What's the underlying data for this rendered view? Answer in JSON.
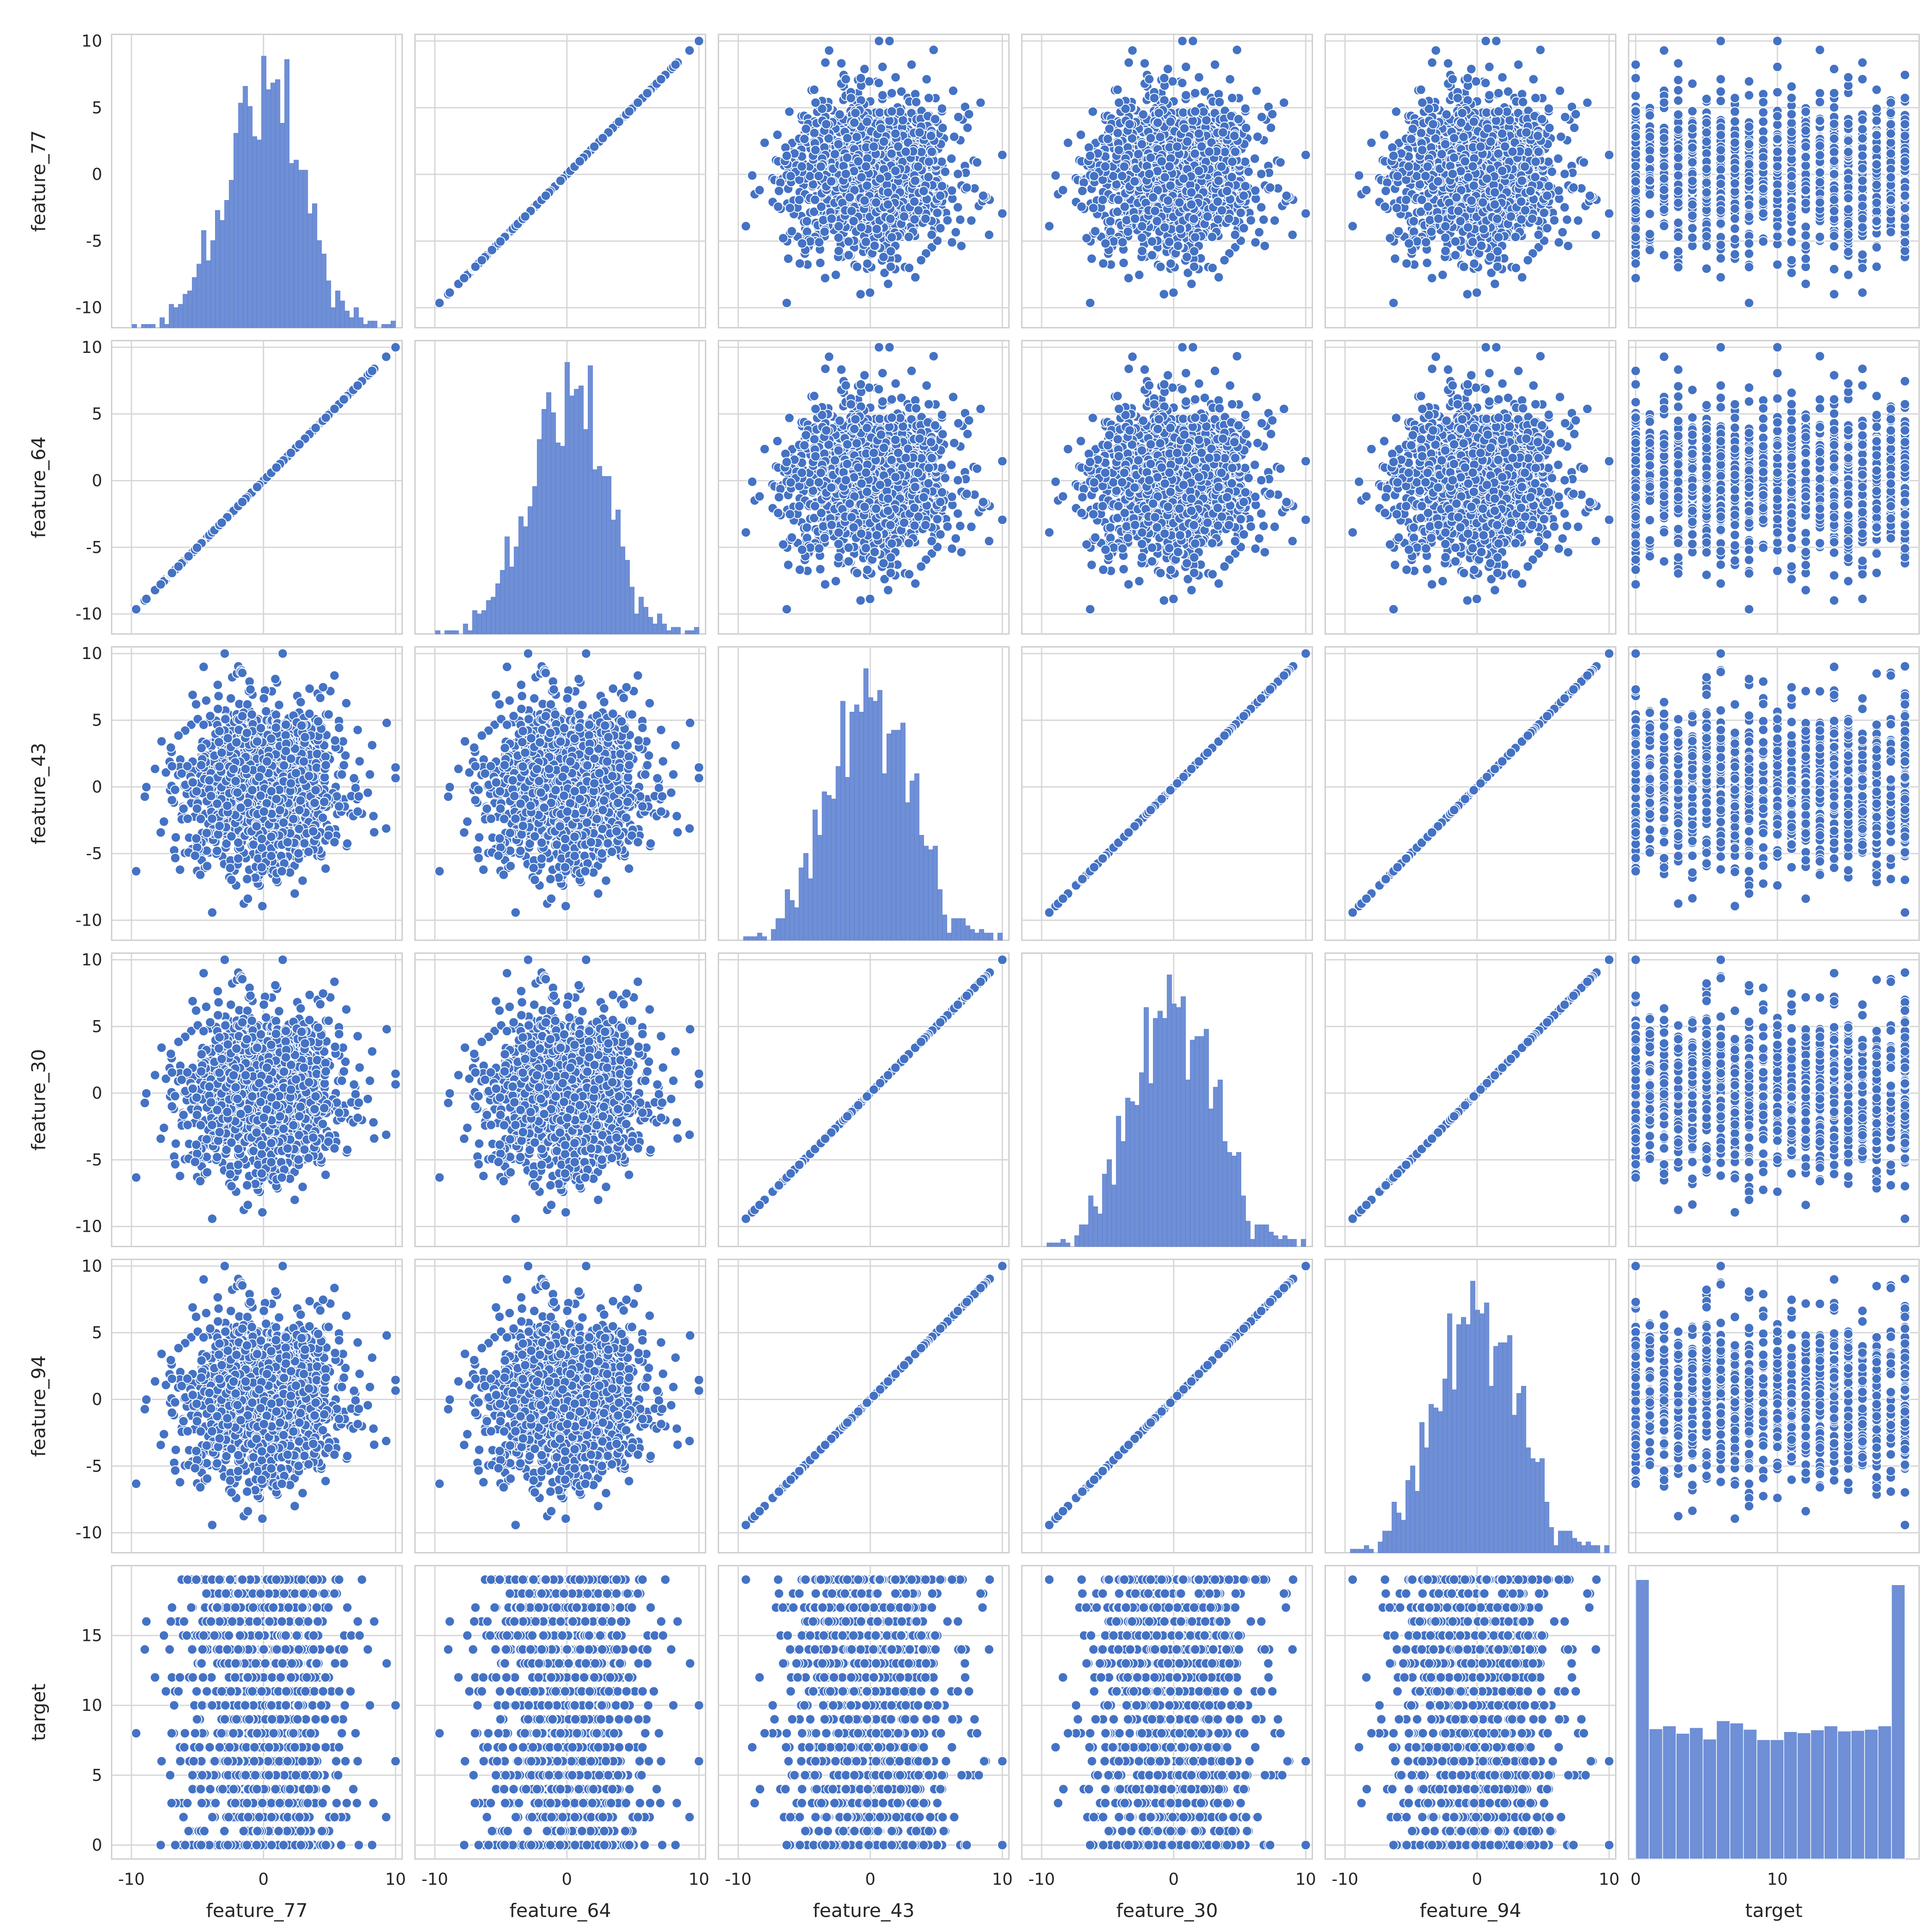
{
  "chart_data": {
    "type": "pairplot",
    "variables": [
      "feature_77",
      "feature_64",
      "feature_43",
      "feature_30",
      "feature_94",
      "target"
    ],
    "feature_ticks": [
      "-10",
      "-5",
      "0",
      "5",
      "10"
    ],
    "feature_xticks": [
      "-10",
      "0",
      "10"
    ],
    "target_yticks": [
      "0",
      "5",
      "10",
      "15"
    ],
    "target_xticks": [
      "0",
      "10"
    ],
    "feature_range": [
      -11.5,
      10.5
    ],
    "target_range": [
      -1,
      20
    ],
    "target_xrange": [
      -0.5,
      20
    ],
    "n_points": 5000,
    "feature_distribution": {
      "mean": 0,
      "std": 3
    },
    "target_values": {
      "min": 0,
      "max": 19
    },
    "pairs_correlation": {
      "feature_77|feature_64": 1.0,
      "feature_43|feature_30": 1.0,
      "feature_43|feature_94": 1.0,
      "feature_30|feature_94": 1.0,
      "other_pairs": 0.0
    },
    "diag_histogram_bins": 60,
    "target_histogram": {
      "bin_edges": [
        0,
        0.95,
        1.9,
        2.85,
        3.8,
        4.75,
        5.7,
        6.65,
        7.6,
        8.55,
        9.5,
        10.45,
        11.4,
        12.35,
        13.3,
        14.25,
        15.2,
        16.15,
        17.1,
        18.05,
        19
      ],
      "counts": [
        487,
        227,
        232,
        219,
        229,
        209,
        241,
        237,
        226,
        208,
        208,
        222,
        220,
        225,
        232,
        223,
        224,
        226,
        232,
        478
      ]
    },
    "point_color": "#4472c4",
    "hist_color": "#6f8fd6",
    "grid": true,
    "style": "whitegrid"
  }
}
